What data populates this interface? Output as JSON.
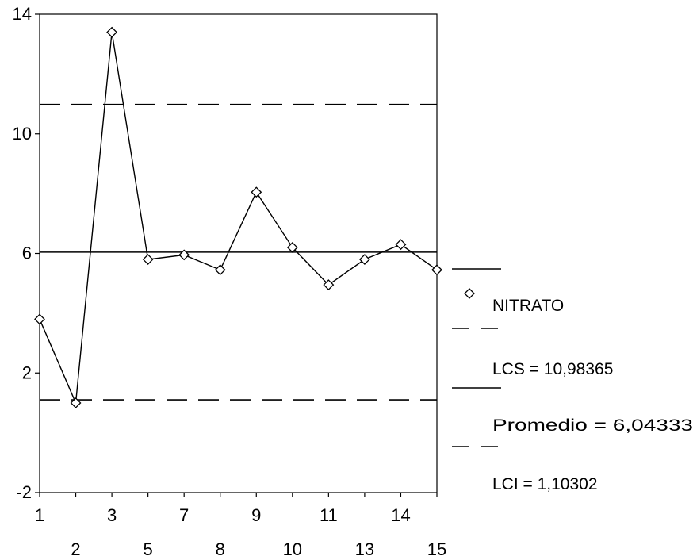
{
  "chart_data": {
    "type": "line",
    "title": "",
    "xlabel": "",
    "ylabel": "",
    "x_tick_labels_upper": [
      "1",
      "3",
      "7",
      "9",
      "11",
      "14"
    ],
    "x_tick_labels_lower": [
      "2",
      "5",
      "8",
      "10",
      "13",
      "15"
    ],
    "x_sample_labels": [
      "1",
      "2",
      "3",
      "5",
      "7",
      "8",
      "9",
      "10",
      "11",
      "13",
      "14",
      "15"
    ],
    "ylim": [
      -2,
      14
    ],
    "y_ticks": [
      14,
      10,
      6,
      2,
      -2
    ],
    "y_tick_labels": [
      "14",
      "10",
      "6",
      "2",
      "-2"
    ],
    "series": [
      {
        "name": "NITRATO",
        "values": [
          3.8,
          1.0,
          13.4,
          5.8,
          5.95,
          5.45,
          8.05,
          6.2,
          4.95,
          5.8,
          6.3,
          5.45
        ],
        "marker": "diamond",
        "color": "#000000"
      }
    ],
    "reference_lines": [
      {
        "name": "LCS = 10,98365",
        "value": 10.98365,
        "style": "dashed"
      },
      {
        "name": "Promedio = 6,04333",
        "value": 6.04333,
        "style": "solid"
      },
      {
        "name": "LCI = 1,10302",
        "value": 1.10302,
        "style": "dashed"
      }
    ],
    "grid": false,
    "legend_position": "right"
  }
}
